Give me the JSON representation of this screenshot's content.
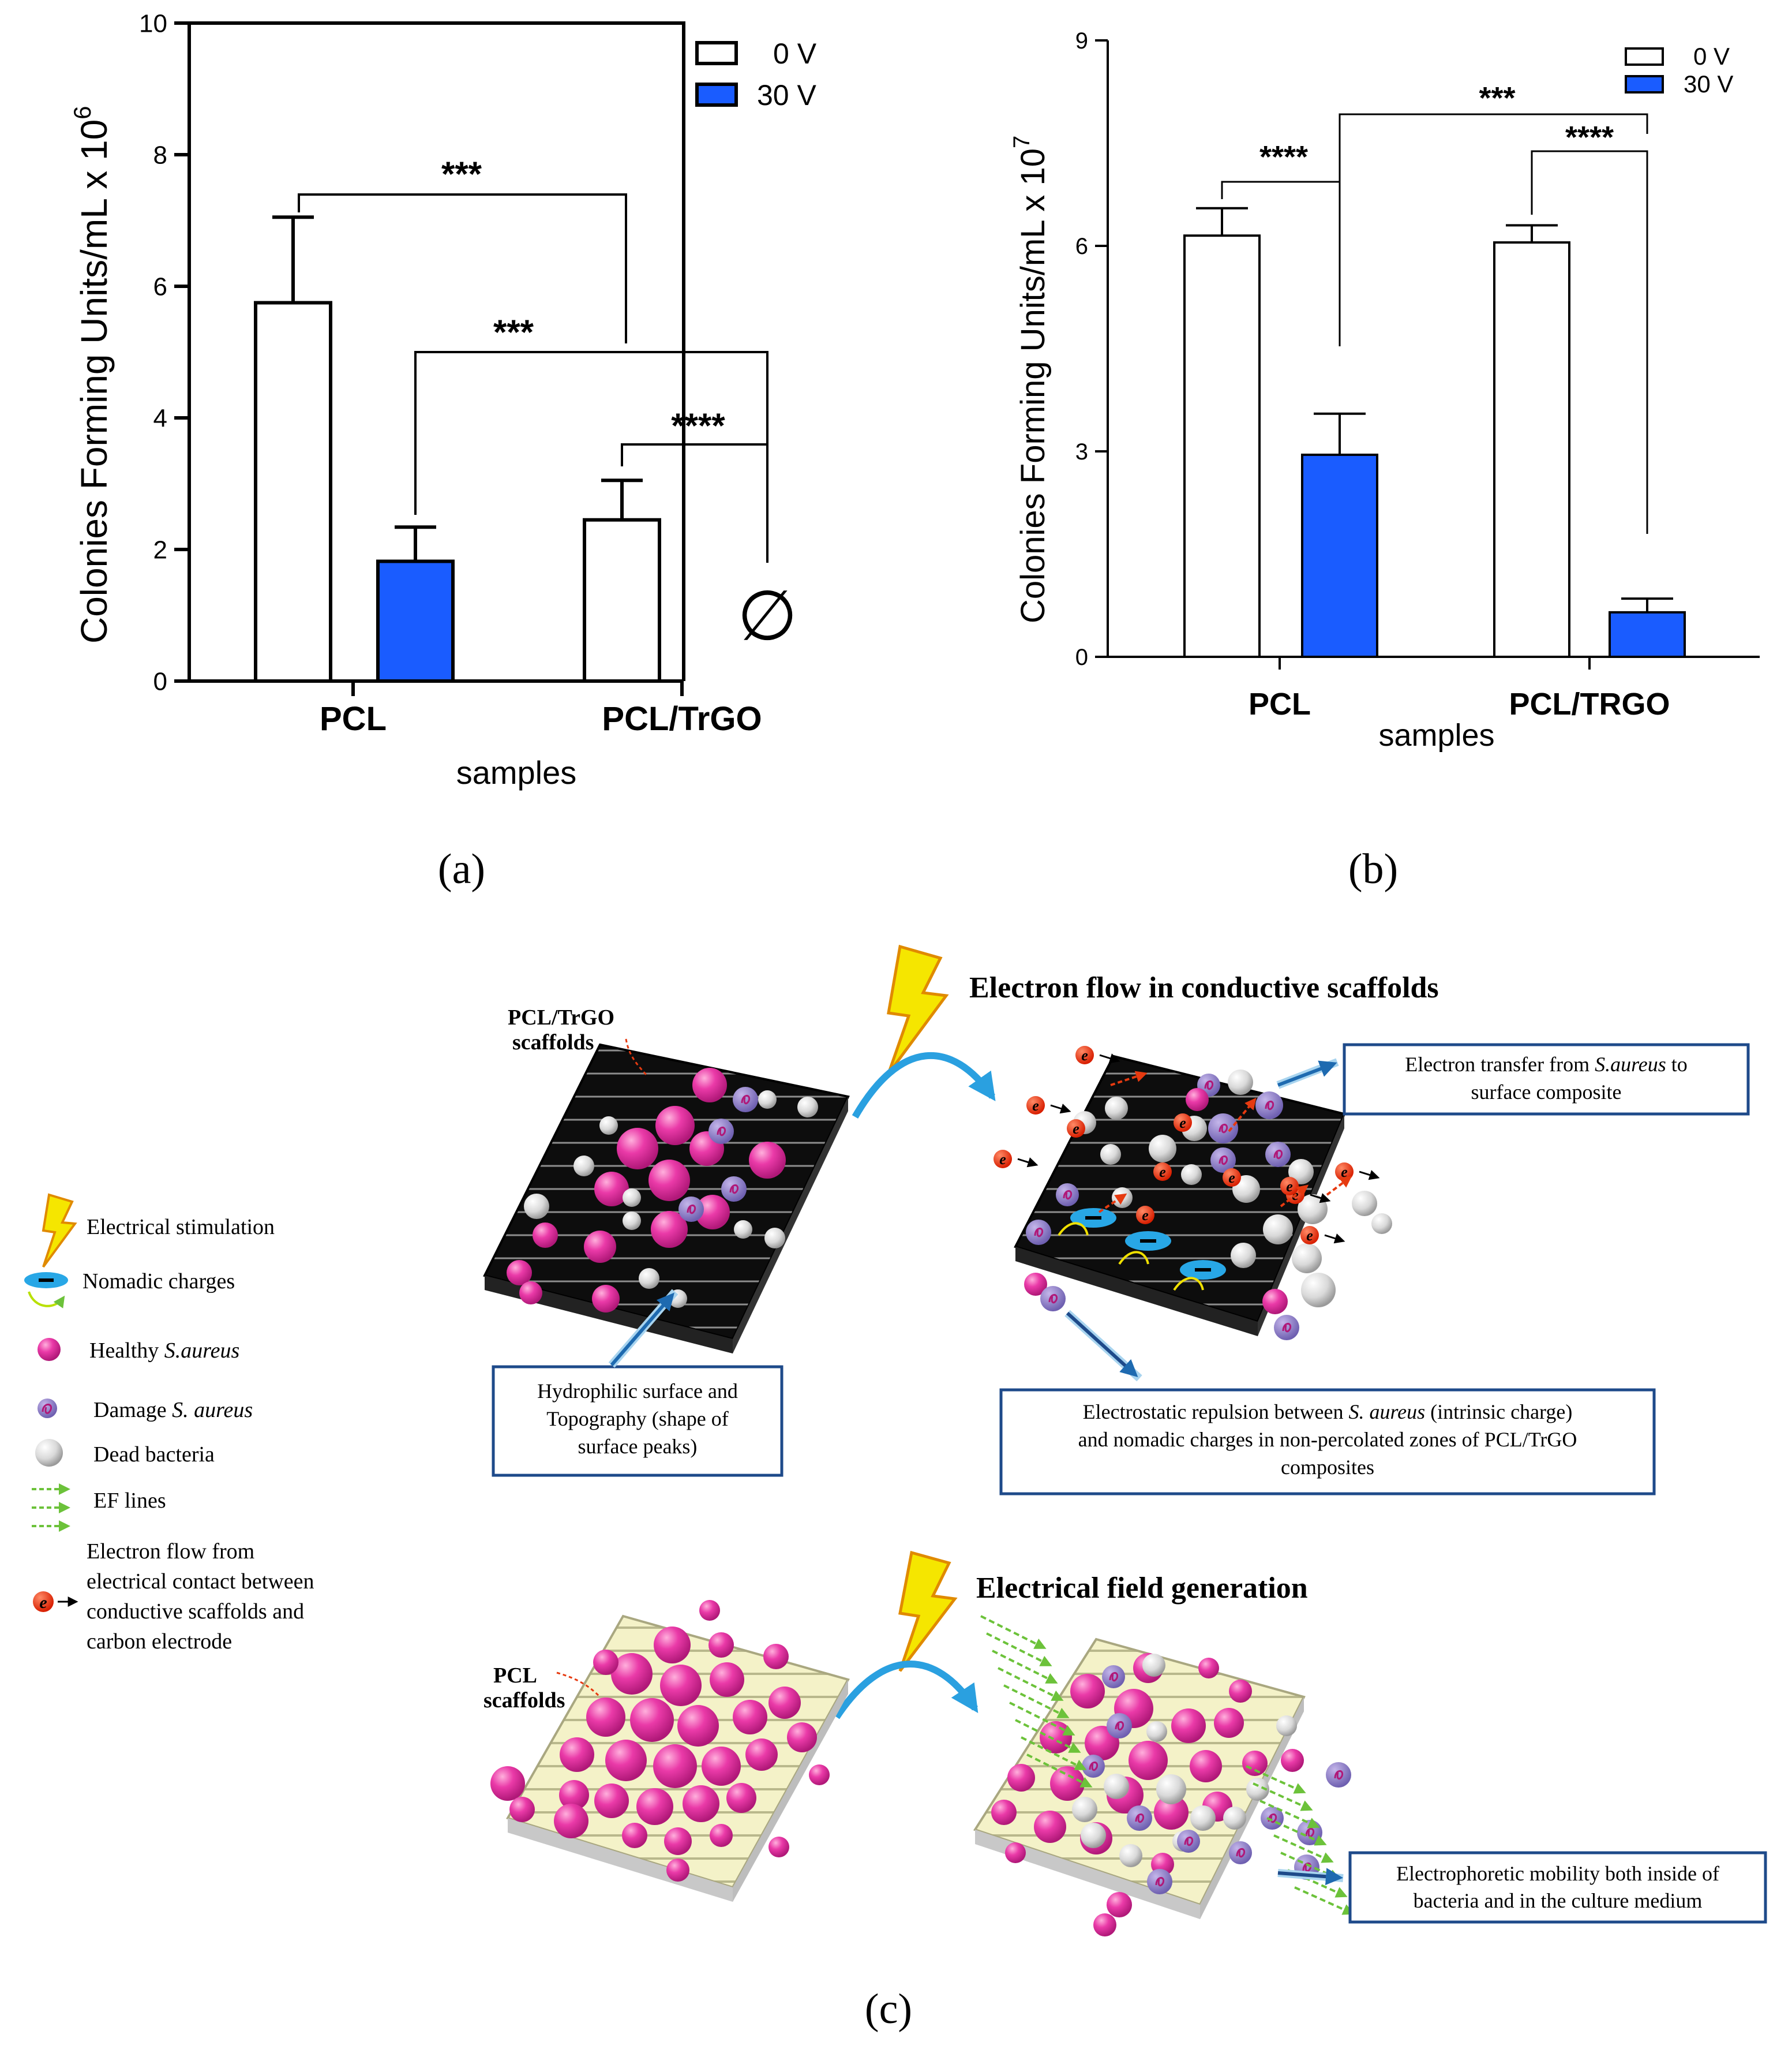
{
  "chart_data": [
    {
      "type": "bar",
      "panel": "(a)",
      "categories": [
        "PCL",
        "PCL/TrGO"
      ],
      "series": [
        {
          "name": "0 V",
          "color": "#ffffff",
          "values": [
            5.75,
            2.45
          ],
          "errors": [
            1.3,
            0.6
          ]
        },
        {
          "name": "30 V",
          "color": "#1a5cff",
          "values": [
            1.82,
            0
          ],
          "errors": [
            0.52,
            0
          ]
        }
      ],
      "xlabel": "samples",
      "ylabel": "Colonies Forming Units/mL x 10",
      "ylabel_exp": "6",
      "ylim": [
        0,
        10
      ],
      "yticks": [
        "0",
        "2",
        "4",
        "6",
        "8",
        "10"
      ],
      "legend": "top-right",
      "annotations": [
        "***",
        "***",
        "****",
        "∅"
      ]
    },
    {
      "type": "bar",
      "panel": "(b)",
      "categories": [
        "PCL",
        "PCL/TRGO"
      ],
      "series": [
        {
          "name": "0 V",
          "color": "#ffffff",
          "values": [
            6.15,
            6.05
          ],
          "errors": [
            0.4,
            0.25
          ]
        },
        {
          "name": "30 V",
          "color": "#1a5cff",
          "values": [
            2.95,
            0.65
          ],
          "errors": [
            0.6,
            0.2
          ]
        }
      ],
      "xlabel": "samples",
      "ylabel": "Colonies Forming Units/mL x 10",
      "ylabel_exp": "7",
      "ylim": [
        0,
        9
      ],
      "yticks": [
        "0",
        "3",
        "6",
        "9"
      ],
      "legend": "top-right",
      "annotations": [
        "****",
        "***",
        "****"
      ]
    }
  ],
  "labels": {
    "a": "(a)",
    "b": "(b)",
    "c": "(c)"
  },
  "schematic": {
    "title_top": "Electron flow in conductive scaffolds",
    "title_bottom": "Electrical field generation",
    "trgo_label_1": "PCL/TrGO",
    "trgo_label_2": "scaffolds",
    "pcl_label_1": "PCL",
    "pcl_label_2": "scaffolds",
    "box_hydrophilic": [
      "Hydrophilic surface and",
      "Topography (shape of",
      "surface peaks)"
    ],
    "box_electron": [
      "Electron transfer from",
      "S.aureus",
      "to",
      "surface composite"
    ],
    "box_repulsion": [
      "Electrostatic repulsion between",
      "S. aureus",
      "(intrinsic charge)",
      "and nomadic charges in non-percolated zones of PCL/TrGO",
      "composites"
    ],
    "box_electrophoretic": [
      "Electrophoretic mobility both inside of",
      "bacteria and in the culture medium"
    ]
  },
  "legend": {
    "electrical": "Electrical stimulation",
    "nomadic": "Nomadic charges",
    "healthy_prefix": "Healthy ",
    "healthy_italic": "S.aureus",
    "damage_prefix": "Damage ",
    "damage_italic": "S. aureus",
    "dead": "Dead bacteria",
    "ef": "EF lines",
    "electron_lines": [
      "Electron      flow      from",
      "electrical contact between",
      "conductive scaffolds and",
      "carbon electrode"
    ]
  }
}
